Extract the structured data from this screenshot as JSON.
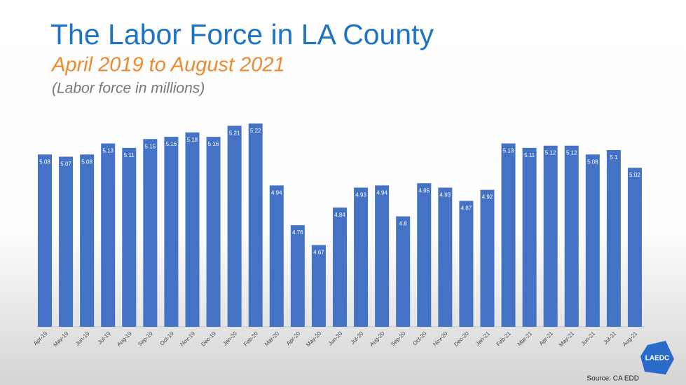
{
  "chart_data": {
    "type": "bar",
    "title": "The Labor Force in LA County",
    "subtitle": "April 2019 to August 2021",
    "axis_note": "(Labor force in millions)",
    "source": "Source: CA EDD",
    "logo": "LAEDC",
    "categories": [
      "Apr-19",
      "May-19",
      "Jun-19",
      "Jul-19",
      "Aug-19",
      "Sep-19",
      "Oct-19",
      "Nov-19",
      "Dec-19",
      "Jan-20",
      "Feb-20",
      "Mar-20",
      "Apr-20",
      "May-20",
      "Jun-20",
      "Jul-20",
      "Aug-20",
      "Sep-20",
      "Oct-20",
      "Nov-20",
      "Dec-20",
      "Jan-21",
      "Feb-21",
      "Mar-21",
      "Apr-21",
      "May-21",
      "Jun-21",
      "Jul-21",
      "Aug-21"
    ],
    "values": [
      5.08,
      5.07,
      5.08,
      5.13,
      5.11,
      5.15,
      5.16,
      5.18,
      5.16,
      5.21,
      5.22,
      4.94,
      4.76,
      4.67,
      4.84,
      4.93,
      4.94,
      4.8,
      4.95,
      4.93,
      4.87,
      4.92,
      5.13,
      5.11,
      5.12,
      5.12,
      5.08,
      5.1,
      5.02
    ],
    "color": "#4472c4",
    "ylim": [
      4.3,
      5.3
    ]
  }
}
